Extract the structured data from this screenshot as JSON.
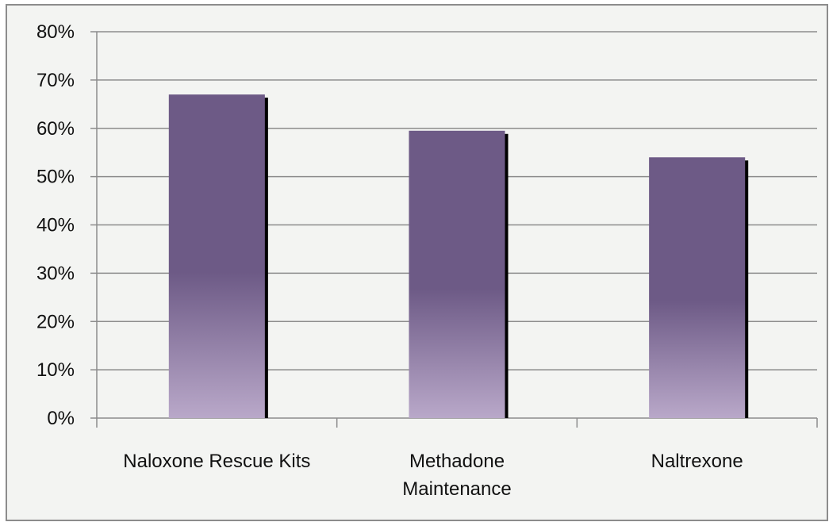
{
  "chart_data": {
    "type": "bar",
    "categories": [
      [
        "Naloxone Rescue Kits"
      ],
      [
        "Methadone",
        "Maintenance"
      ],
      [
        "Naltrexone"
      ]
    ],
    "values": [
      0.67,
      0.595,
      0.54
    ],
    "ylim": [
      0,
      0.8
    ],
    "yticks": [
      0,
      0.1,
      0.2,
      0.3,
      0.4,
      0.5,
      0.6,
      0.7,
      0.8
    ],
    "ytick_labels": [
      "0%",
      "10%",
      "20%",
      "30%",
      "40%",
      "50%",
      "60%",
      "70%",
      "80%"
    ],
    "grid": true,
    "legend": "none",
    "colors": {
      "bar_top": "#6d5a86",
      "bar_bottom": "#b9a8c9",
      "shadow": "#000000",
      "gridline": "#8c8c8c",
      "background": "#f3f4f2"
    }
  }
}
